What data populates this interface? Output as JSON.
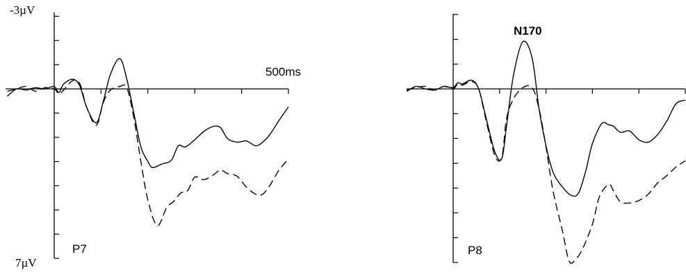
{
  "chart_data": [
    {
      "type": "line",
      "title": "",
      "panel_label": "P7",
      "x_end_label": "500ms",
      "y_top_label": "-3µV",
      "y_bottom_label": "7µV",
      "xlim": [
        -100,
        500
      ],
      "ylim_display": [
        -3,
        7
      ],
      "y_inverted": true,
      "x_ticks": [
        100,
        200,
        300,
        400,
        500
      ],
      "y_ticks": [
        -3,
        -2,
        -1,
        1,
        2,
        3,
        4,
        5,
        6,
        7
      ],
      "series": [
        {
          "style": "solid",
          "x": [
            -100,
            -80,
            -60,
            -40,
            -20,
            0,
            10,
            20,
            40,
            55,
            70,
            90,
            105,
            120,
            140,
            155,
            170,
            185,
            200,
            210,
            230,
            250,
            265,
            280,
            300,
            320,
            340,
            355,
            370,
            390,
            410,
            430,
            445,
            460,
            480,
            500
          ],
          "y": [
            0.3,
            0.0,
            0.05,
            -0.05,
            0.0,
            -0.1,
            0.15,
            -0.2,
            -0.4,
            -0.1,
            0.8,
            1.4,
            0.5,
            -0.6,
            -1.25,
            -0.4,
            1.0,
            2.4,
            3.0,
            3.25,
            3.1,
            2.95,
            2.35,
            2.4,
            2.1,
            1.75,
            1.55,
            1.6,
            2.05,
            2.2,
            2.15,
            2.35,
            2.2,
            1.9,
            1.3,
            0.75
          ]
        },
        {
          "style": "dashed",
          "x": [
            -100,
            -80,
            -60,
            -40,
            -20,
            0,
            10,
            20,
            40,
            55,
            70,
            90,
            105,
            120,
            140,
            155,
            170,
            185,
            200,
            220,
            240,
            255,
            270,
            285,
            300,
            320,
            340,
            355,
            370,
            390,
            410,
            430,
            445,
            460,
            480,
            500
          ],
          "y": [
            0.1,
            0.0,
            -0.1,
            0.1,
            -0.05,
            0.0,
            0.2,
            0.05,
            -0.35,
            -0.2,
            0.8,
            1.5,
            0.55,
            0.05,
            -0.1,
            -0.05,
            1.2,
            3.0,
            4.6,
            5.65,
            4.9,
            4.65,
            4.3,
            4.2,
            3.65,
            3.75,
            3.55,
            3.35,
            3.5,
            3.6,
            4.05,
            4.35,
            4.35,
            4.0,
            3.35,
            2.9
          ]
        }
      ]
    },
    {
      "type": "line",
      "title": "N170",
      "panel_label": "P8",
      "x_end_label": "",
      "y_top_label": "",
      "y_bottom_label": "",
      "xlim": [
        -100,
        500
      ],
      "ylim_display": [
        -3,
        7
      ],
      "y_inverted": true,
      "x_ticks": [
        100,
        200,
        300,
        400,
        500
      ],
      "y_ticks": [
        -3,
        -2,
        -1,
        1,
        2,
        3,
        4,
        5,
        6,
        7
      ],
      "series": [
        {
          "style": "solid",
          "x": [
            -100,
            -80,
            -60,
            -40,
            -20,
            0,
            10,
            20,
            40,
            55,
            70,
            90,
            105,
            115,
            130,
            150,
            170,
            185,
            200,
            215,
            235,
            255,
            270,
            285,
            300,
            320,
            335,
            345,
            360,
            380,
            400,
            420,
            440,
            460,
            480,
            500
          ],
          "y": [
            0.1,
            -0.1,
            0.0,
            0.05,
            -0.1,
            -0.05,
            -0.25,
            -0.2,
            -0.35,
            0.0,
            1.1,
            2.55,
            2.8,
            1.5,
            -0.55,
            -1.9,
            -1.25,
            0.8,
            2.3,
            3.35,
            3.95,
            4.3,
            4.2,
            3.35,
            2.2,
            1.4,
            1.45,
            1.5,
            1.75,
            1.7,
            2.05,
            2.15,
            1.85,
            1.3,
            0.6,
            0.45
          ]
        },
        {
          "style": "dashed",
          "x": [
            -100,
            -80,
            -60,
            -40,
            -20,
            0,
            10,
            20,
            40,
            55,
            70,
            90,
            105,
            115,
            130,
            150,
            170,
            185,
            200,
            215,
            235,
            250,
            265,
            280,
            300,
            315,
            335,
            345,
            360,
            380,
            400,
            420,
            440,
            460,
            480,
            500
          ],
          "y": [
            0.05,
            -0.05,
            -0.1,
            0.05,
            -0.1,
            0.0,
            -0.2,
            -0.15,
            -0.3,
            0.0,
            1.2,
            2.7,
            2.75,
            1.2,
            0.4,
            -0.05,
            -0.05,
            0.8,
            2.35,
            4.1,
            5.7,
            6.95,
            6.85,
            6.4,
            5.45,
            4.35,
            3.85,
            4.1,
            4.55,
            4.6,
            4.5,
            4.25,
            3.8,
            3.5,
            3.15,
            2.9
          ]
        }
      ]
    }
  ]
}
